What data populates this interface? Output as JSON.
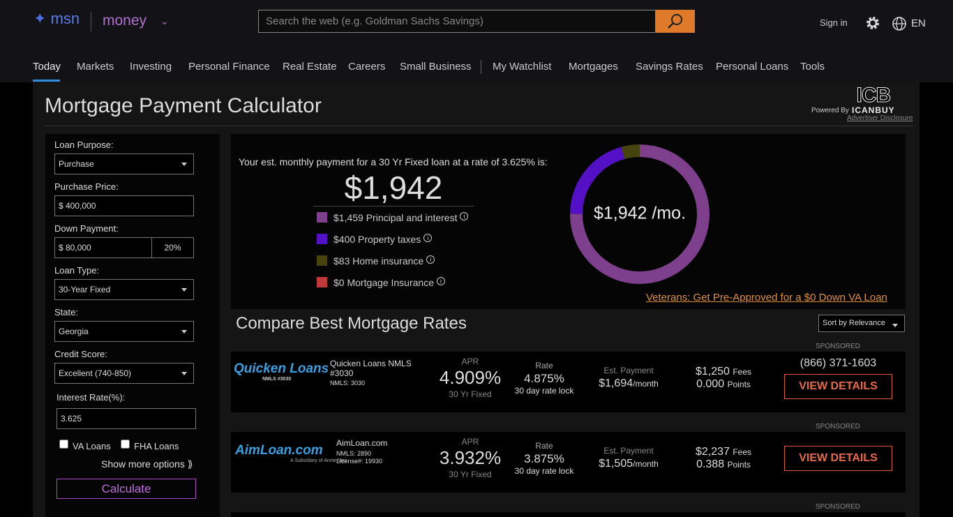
{
  "header": {
    "logo": "msn",
    "section": "money",
    "search_placeholder": "Search the web (e.g. Goldman Sachs Savings)",
    "sign_in": "Sign in",
    "language": "EN"
  },
  "nav": [
    "Today",
    "Markets",
    "Investing",
    "Personal Finance",
    "Real Estate",
    "Careers",
    "Small Business",
    "My Watchlist",
    "Mortgages",
    "Savings Rates",
    "Personal Loans",
    "Tools"
  ],
  "calculator": {
    "title": "Mortgage Payment Calculator",
    "powered_by": "Powered By",
    "brand": "ICANBUY",
    "advertiser_disclosure": "Advertiser Disclosure",
    "form": {
      "loan_purpose_label": "Loan Purpose:",
      "loan_purpose": "Purchase",
      "price_label": "Purchase Price:",
      "price": "$ 400,000",
      "down_label": "Down Payment:",
      "down": "$ 80,000",
      "down_pct": "20%",
      "loan_type_label": "Loan Type:",
      "loan_type": "30-Year Fixed",
      "state_label": "State:",
      "state": "Georgia",
      "credit_label": "Credit Score:",
      "credit": "Excellent (740-850)",
      "rate_label": "Interest Rate(%):",
      "rate": "3.625",
      "va": "VA Loans",
      "fha": "FHA Loans",
      "more": "Show more options ⟫",
      "calculate": "Calculate"
    },
    "summary": "Your est. monthly payment for a 30 Yr Fixed loan at a rate of 3.625% is:",
    "total": "$1,942",
    "breakdown": [
      {
        "amount": "$1,459",
        "label": "Principal and interest",
        "value": 1459,
        "color": "#7e3f8c"
      },
      {
        "amount": "$400",
        "label": "Property taxes",
        "value": 400,
        "color": "#5410c4"
      },
      {
        "amount": "$83",
        "label": "Home insurance",
        "value": 83,
        "color": "#47430f"
      },
      {
        "amount": "$0",
        "label": "Mortgage Insurance",
        "value": 0,
        "color": "#c0393b"
      }
    ],
    "donut_center": "$1,942 /mo.",
    "va_link": "Veterans: Get Pre-Approved for a $0 Down VA Loan"
  },
  "compare": {
    "title": "Compare Best Mortgage Rates",
    "sort": "Sort by Relevance",
    "sponsored": "SPONSORED",
    "offers": [
      {
        "logo": "Quicken Loans",
        "logo_sub": "NMLS #3030",
        "name": "Quicken Loans NMLS #3030",
        "nmls": "NMLS: 3030",
        "apr_label": "APR",
        "apr": "4.909%",
        "apr_sub": "30 Yr Fixed",
        "rate_label": "Rate",
        "rate": "4.875%",
        "rate_sub": "30 day rate lock",
        "payment_label": "Est. Payment",
        "payment": "$1,694",
        "payment_unit": "/month",
        "fees": "$1,250",
        "fees_label": "Fees",
        "points": "0.000",
        "points_label": "Points",
        "phone": "(866) 371-1603",
        "button": "VIEW DETAILS"
      },
      {
        "logo": "AimLoan.com",
        "logo_sub": "A Subsidiary of Annie Mac",
        "name": "AimLoan.com",
        "nmls": "NMLS: 2890",
        "license": "License#: 19930",
        "apr_label": "APR",
        "apr": "3.932%",
        "apr_sub": "30 Yr Fixed",
        "rate_label": "Rate",
        "rate": "3.875%",
        "rate_sub": "30 day rate lock",
        "payment_label": "Est. Payment",
        "payment": "$1,505",
        "payment_unit": "/month",
        "fees": "$2,237",
        "fees_label": "Fees",
        "points": "0.388",
        "points_label": "Points",
        "button": "VIEW DETAILS"
      }
    ]
  }
}
